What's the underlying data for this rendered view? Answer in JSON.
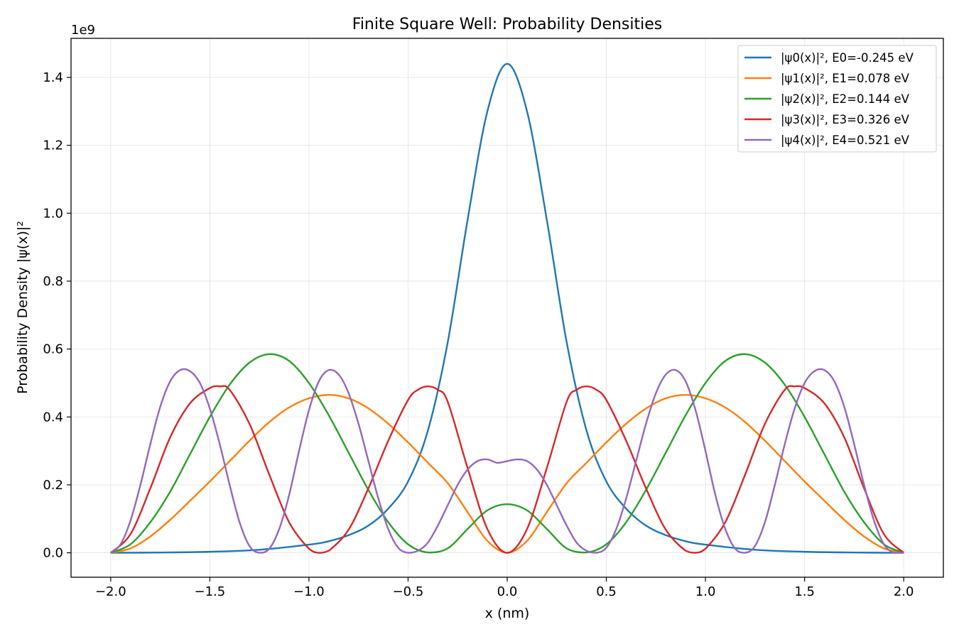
{
  "chart_data": {
    "type": "line",
    "title": "Finite Square Well: Probability Densities",
    "xlabel": "x (nm)",
    "ylabel": "Probability Density |ψ(x)|²",
    "y_offset_label": "1e9",
    "xlim": [
      -2.2,
      2.2
    ],
    "ylim": [
      -0.072,
      1.515
    ],
    "x_ticks": [
      -2.0,
      -1.5,
      -1.0,
      -0.5,
      0.0,
      0.5,
      1.0,
      1.5,
      2.0
    ],
    "x_tick_labels": [
      "−2.0",
      "−1.5",
      "−1.0",
      "−0.5",
      "0.0",
      "0.5",
      "1.0",
      "1.5",
      "2.0"
    ],
    "y_ticks": [
      0.0,
      0.2,
      0.4,
      0.6,
      0.8,
      1.0,
      1.2,
      1.4
    ],
    "y_tick_labels": [
      "0.0",
      "0.2",
      "0.4",
      "0.6",
      "0.8",
      "1.0",
      "1.2",
      "1.4"
    ],
    "grid": true,
    "legend_position": "top-right",
    "series": [
      {
        "name": "|ψ0(x)|², E0=-0.245 eV",
        "color": "#1f77b4",
        "x": [
          -2.0,
          -1.75,
          -1.5,
          -1.25,
          -1.0,
          -0.9,
          -0.8,
          -0.7,
          -0.6,
          -0.5,
          -0.4,
          -0.3,
          -0.2,
          -0.1,
          0.0,
          0.1,
          0.2,
          0.3,
          0.4,
          0.5,
          0.6,
          0.7,
          0.8,
          0.9,
          1.0,
          1.25,
          1.5,
          1.75,
          2.0
        ],
        "y": [
          0.0,
          0.0008,
          0.003,
          0.009,
          0.024,
          0.034,
          0.052,
          0.08,
          0.13,
          0.21,
          0.36,
          0.62,
          0.98,
          1.3,
          1.44,
          1.3,
          0.98,
          0.62,
          0.36,
          0.21,
          0.13,
          0.08,
          0.052,
          0.034,
          0.024,
          0.009,
          0.003,
          0.0008,
          0.0
        ]
      },
      {
        "name": "|ψ1(x)|², E1=0.078 eV",
        "color": "#ff7f0e",
        "x": [
          -2.0,
          -1.9,
          -1.8,
          -1.7,
          -1.6,
          -1.5,
          -1.4,
          -1.3,
          -1.2,
          -1.1,
          -1.0,
          -0.9,
          -0.8,
          -0.7,
          -0.6,
          -0.5,
          -0.4,
          -0.3,
          -0.2,
          -0.1,
          0.0,
          0.1,
          0.2,
          0.3,
          0.4,
          0.5,
          0.6,
          0.7,
          0.8,
          0.9,
          1.0,
          1.1,
          1.2,
          1.3,
          1.4,
          1.5,
          1.6,
          1.7,
          1.8,
          1.9,
          2.0
        ],
        "y": [
          0.0,
          0.013,
          0.048,
          0.097,
          0.153,
          0.21,
          0.27,
          0.33,
          0.385,
          0.428,
          0.455,
          0.465,
          0.455,
          0.425,
          0.38,
          0.325,
          0.265,
          0.205,
          0.12,
          0.035,
          0.0,
          0.035,
          0.12,
          0.205,
          0.265,
          0.325,
          0.38,
          0.425,
          0.455,
          0.465,
          0.455,
          0.428,
          0.385,
          0.33,
          0.27,
          0.21,
          0.153,
          0.097,
          0.048,
          0.013,
          0.0
        ]
      },
      {
        "name": "|ψ2(x)|², E2=0.144 eV",
        "color": "#2ca02c",
        "x": [
          -2.0,
          -1.9,
          -1.8,
          -1.7,
          -1.6,
          -1.5,
          -1.4,
          -1.3,
          -1.2,
          -1.1,
          -1.0,
          -0.9,
          -0.8,
          -0.7,
          -0.6,
          -0.5,
          -0.4,
          -0.3,
          -0.2,
          -0.1,
          0.0,
          0.1,
          0.2,
          0.3,
          0.4,
          0.5,
          0.6,
          0.7,
          0.8,
          0.9,
          1.0,
          1.1,
          1.2,
          1.3,
          1.4,
          1.5,
          1.6,
          1.7,
          1.8,
          1.9,
          2.0
        ],
        "y": [
          0.0,
          0.025,
          0.09,
          0.18,
          0.29,
          0.4,
          0.495,
          0.56,
          0.585,
          0.565,
          0.5,
          0.405,
          0.295,
          0.185,
          0.09,
          0.025,
          0.001,
          0.013,
          0.07,
          0.125,
          0.143,
          0.125,
          0.07,
          0.013,
          0.001,
          0.025,
          0.09,
          0.185,
          0.295,
          0.405,
          0.5,
          0.565,
          0.585,
          0.56,
          0.495,
          0.4,
          0.29,
          0.18,
          0.09,
          0.025,
          0.0
        ]
      },
      {
        "name": "|ψ3(x)|², E3=0.326 eV",
        "color": "#d62728",
        "x": [
          -2.0,
          -1.9,
          -1.8,
          -1.7,
          -1.6,
          -1.5,
          -1.45,
          -1.4,
          -1.3,
          -1.2,
          -1.1,
          -1.0,
          -0.95,
          -0.9,
          -0.8,
          -0.7,
          -0.6,
          -0.5,
          -0.45,
          -0.4,
          -0.35,
          -0.3,
          -0.2,
          -0.1,
          0.0,
          0.1,
          0.2,
          0.3,
          0.35,
          0.4,
          0.45,
          0.5,
          0.6,
          0.7,
          0.8,
          0.9,
          0.95,
          1.0,
          1.1,
          1.2,
          1.3,
          1.4,
          1.45,
          1.5,
          1.6,
          1.7,
          1.8,
          1.9,
          2.0
        ],
        "y": [
          0.0,
          0.055,
          0.19,
          0.34,
          0.44,
          0.485,
          0.49,
          0.48,
          0.38,
          0.23,
          0.09,
          0.012,
          0.0,
          0.006,
          0.068,
          0.19,
          0.33,
          0.45,
          0.48,
          0.49,
          0.48,
          0.445,
          0.25,
          0.07,
          0.0,
          0.07,
          0.25,
          0.445,
          0.48,
          0.49,
          0.48,
          0.45,
          0.33,
          0.19,
          0.068,
          0.006,
          0.0,
          0.012,
          0.09,
          0.23,
          0.38,
          0.48,
          0.49,
          0.485,
          0.44,
          0.34,
          0.19,
          0.055,
          0.0
        ]
      },
      {
        "name": "|ψ4(x)|², E4=0.521 eV",
        "color": "#9467bd",
        "x": [
          -2.0,
          -1.95,
          -1.9,
          -1.85,
          -1.8,
          -1.75,
          -1.7,
          -1.65,
          -1.6,
          -1.55,
          -1.5,
          -1.45,
          -1.4,
          -1.35,
          -1.3,
          -1.25,
          -1.2,
          -1.15,
          -1.1,
          -1.05,
          -1.0,
          -0.95,
          -0.9,
          -0.85,
          -0.8,
          -0.75,
          -0.7,
          -0.65,
          -0.6,
          -0.55,
          -0.5,
          -0.45,
          -0.4,
          -0.35,
          -0.3,
          -0.25,
          -0.2,
          -0.15,
          -0.1,
          -0.05,
          0.0,
          0.05,
          0.1,
          0.15,
          0.2,
          0.25,
          0.3,
          0.35,
          0.4,
          0.45,
          0.5,
          0.55,
          0.6,
          0.65,
          0.7,
          0.75,
          0.8,
          0.85,
          0.9,
          0.95,
          1.0,
          1.05,
          1.1,
          1.15,
          1.2,
          1.25,
          1.3,
          1.35,
          1.4,
          1.45,
          1.5,
          1.55,
          1.6,
          1.65,
          1.7,
          1.75,
          1.8,
          1.85,
          1.9,
          1.95,
          2.0
        ],
        "y": [
          0.0,
          0.025,
          0.095,
          0.2,
          0.32,
          0.43,
          0.505,
          0.538,
          0.535,
          0.5,
          0.425,
          0.32,
          0.2,
          0.09,
          0.02,
          0.0,
          0.012,
          0.07,
          0.17,
          0.3,
          0.42,
          0.505,
          0.538,
          0.525,
          0.47,
          0.38,
          0.27,
          0.16,
          0.07,
          0.015,
          0.0,
          0.006,
          0.03,
          0.08,
          0.14,
          0.2,
          0.245,
          0.27,
          0.275,
          0.265,
          0.27,
          0.275,
          0.27,
          0.245,
          0.2,
          0.14,
          0.08,
          0.03,
          0.006,
          0.0,
          0.015,
          0.07,
          0.16,
          0.27,
          0.38,
          0.47,
          0.525,
          0.538,
          0.505,
          0.42,
          0.3,
          0.17,
          0.07,
          0.012,
          0.0,
          0.02,
          0.09,
          0.2,
          0.32,
          0.425,
          0.5,
          0.535,
          0.538,
          0.505,
          0.43,
          0.32,
          0.2,
          0.095,
          0.025,
          0.0,
          0.0
        ]
      }
    ]
  }
}
